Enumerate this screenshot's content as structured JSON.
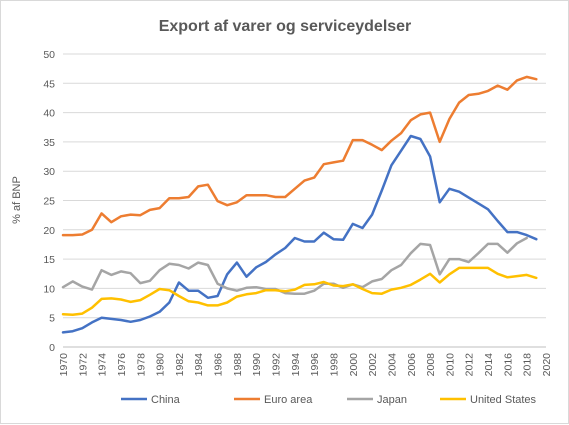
{
  "chart_data": {
    "type": "line",
    "title": "Export af varer og serviceydelser",
    "xlabel": "",
    "ylabel": "% af BNP",
    "xlim": [
      1970,
      2020
    ],
    "ylim": [
      0,
      50
    ],
    "yticks": [
      0,
      5,
      10,
      15,
      20,
      25,
      30,
      35,
      40,
      45,
      50
    ],
    "xticks": [
      1970,
      1972,
      1974,
      1976,
      1978,
      1980,
      1982,
      1984,
      1986,
      1988,
      1990,
      1992,
      1994,
      1996,
      1998,
      2000,
      2002,
      2004,
      2006,
      2008,
      2010,
      2012,
      2014,
      2016,
      2018,
      2020
    ],
    "grid": true,
    "legend": "bottom",
    "x": [
      1970,
      1971,
      1972,
      1973,
      1974,
      1975,
      1976,
      1977,
      1978,
      1979,
      1980,
      1981,
      1982,
      1983,
      1984,
      1985,
      1986,
      1987,
      1988,
      1989,
      1990,
      1991,
      1992,
      1993,
      1994,
      1995,
      1996,
      1997,
      1998,
      1999,
      2000,
      2001,
      2002,
      2003,
      2004,
      2005,
      2006,
      2007,
      2008,
      2009,
      2010,
      2011,
      2012,
      2013,
      2014,
      2015,
      2016,
      2017,
      2018,
      2019
    ],
    "series": [
      {
        "name": "China",
        "color": "#4472c4",
        "values": [
          2.5,
          2.7,
          3.2,
          4.2,
          5.0,
          4.8,
          4.6,
          4.3,
          4.6,
          5.2,
          6.0,
          7.6,
          11.0,
          9.6,
          9.6,
          8.4,
          8.7,
          12.4,
          14.4,
          12.0,
          13.6,
          14.5,
          15.8,
          16.9,
          18.6,
          18.0,
          18.0,
          19.5,
          18.4,
          18.3,
          21.0,
          20.3,
          22.6,
          26.7,
          31.0,
          33.5,
          36.0,
          35.5,
          32.5,
          24.7,
          27.0,
          26.5,
          25.5,
          24.5,
          23.5,
          21.5,
          19.6,
          19.6,
          19.1,
          18.4
        ]
      },
      {
        "name": "Euro area",
        "color": "#ed7d31",
        "values": [
          19.1,
          19.1,
          19.2,
          20.0,
          22.8,
          21.3,
          22.3,
          22.6,
          22.5,
          23.4,
          23.7,
          25.4,
          25.4,
          25.6,
          27.4,
          27.7,
          24.9,
          24.2,
          24.7,
          25.9,
          25.9,
          25.9,
          25.6,
          25.6,
          27.0,
          28.4,
          28.9,
          31.2,
          31.5,
          31.8,
          35.3,
          35.3,
          34.5,
          33.6,
          35.2,
          36.5,
          38.7,
          39.7,
          40.0,
          35.0,
          38.9,
          41.7,
          43.0,
          43.2,
          43.7,
          44.6,
          43.9,
          45.5,
          46.1,
          45.7
        ]
      },
      {
        "name": "Japan",
        "color": "#a5a5a5",
        "values": [
          10.2,
          11.2,
          10.3,
          9.8,
          13.1,
          12.3,
          12.9,
          12.6,
          10.9,
          11.3,
          13.1,
          14.2,
          14.0,
          13.4,
          14.4,
          14.0,
          10.8,
          10.0,
          9.6,
          10.1,
          10.2,
          9.9,
          9.9,
          9.2,
          9.1,
          9.1,
          9.6,
          10.8,
          10.8,
          10.1,
          10.7,
          10.2,
          11.2,
          11.6,
          13.1,
          14.0,
          16.0,
          17.6,
          17.4,
          12.4,
          15.0,
          15.0,
          14.5,
          16.0,
          17.6,
          17.6,
          16.1,
          17.7,
          18.6,
          null
        ]
      },
      {
        "name": "United States",
        "color": "#ffc000",
        "values": [
          5.6,
          5.5,
          5.7,
          6.7,
          8.2,
          8.3,
          8.1,
          7.7,
          8.0,
          8.9,
          9.9,
          9.7,
          8.7,
          7.8,
          7.6,
          7.1,
          7.1,
          7.6,
          8.6,
          9.0,
          9.2,
          9.7,
          9.7,
          9.5,
          9.8,
          10.6,
          10.7,
          11.1,
          10.5,
          10.4,
          10.7,
          9.9,
          9.2,
          9.1,
          9.8,
          10.1,
          10.6,
          11.5,
          12.5,
          11.0,
          12.4,
          13.5,
          13.5,
          13.5,
          13.5,
          12.5,
          11.9,
          12.1,
          12.3,
          11.8
        ]
      }
    ]
  }
}
